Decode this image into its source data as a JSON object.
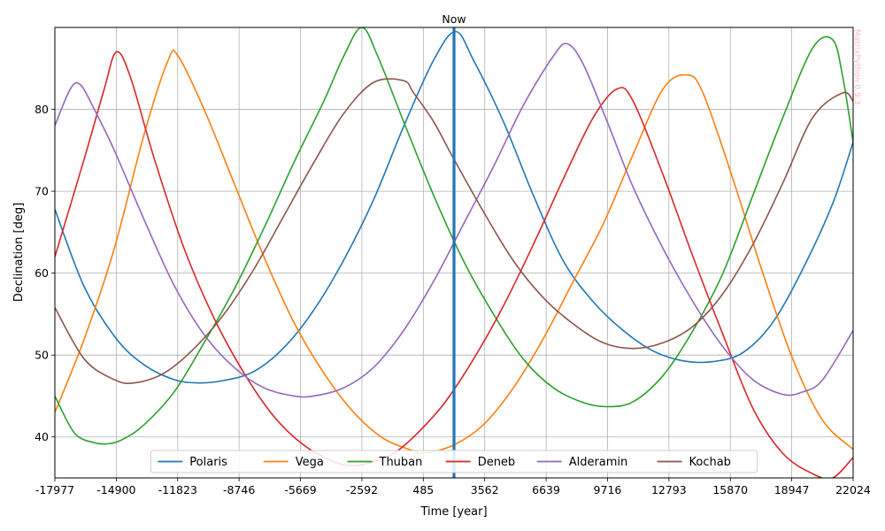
{
  "chart_data": {
    "type": "line",
    "title": "",
    "xlabel": "Time [year]",
    "ylabel": "Declination [deg]",
    "xlim": [
      -17977,
      22024
    ],
    "ylim": [
      35,
      90
    ],
    "xticks": [
      -17977,
      -14900,
      -11823,
      -8746,
      -5669,
      -2592,
      485,
      3562,
      6639,
      9716,
      12793,
      15870,
      18947,
      22024
    ],
    "yticks": [
      40,
      50,
      60,
      70,
      80
    ],
    "grid": true,
    "legend_position": "bottom-center",
    "marker": {
      "label": "Now",
      "x": 2024,
      "color": "#1f77b4"
    },
    "watermark": "MatrixPython 0.9.3",
    "series": [
      {
        "name": "Polaris",
        "color": "#1f77b4",
        "x": [
          -17977,
          -16500,
          -14900,
          -13500,
          -12000,
          -10800,
          -9500,
          -8000,
          -6500,
          -5000,
          -3500,
          -2000,
          -500,
          1000,
          2100,
          3000,
          4500,
          6000,
          7500,
          9000,
          10500,
          12000,
          13500,
          15000,
          16500,
          18000,
          19500,
          21000,
          22024
        ],
        "y": [
          67.8,
          58.3,
          52.0,
          48.8,
          47.0,
          46.6,
          46.9,
          48.0,
          50.9,
          55.5,
          61.6,
          69.0,
          77.9,
          86.0,
          89.5,
          86.0,
          78.5,
          69.5,
          61.5,
          56.5,
          53.0,
          50.5,
          49.3,
          49.2,
          50.3,
          54.0,
          60.5,
          68.5,
          76.0
        ]
      },
      {
        "name": "Vega",
        "color": "#ff7f0e",
        "x": [
          -17977,
          -16500,
          -15000,
          -13500,
          -12300,
          -11800,
          -10500,
          -9000,
          -7500,
          -6000,
          -4500,
          -3000,
          -1500,
          0,
          500,
          2000,
          3500,
          5000,
          6500,
          8000,
          9500,
          11000,
          12500,
          13700,
          14500,
          16000,
          17500,
          19000,
          20500,
          22024
        ],
        "y": [
          43.0,
          52.0,
          63.0,
          77.0,
          86.0,
          86.5,
          80.0,
          71.0,
          62.0,
          54.0,
          47.8,
          43.0,
          39.8,
          38.3,
          38.0,
          39.0,
          41.5,
          46.0,
          52.0,
          59.0,
          66.0,
          74.5,
          82.5,
          84.2,
          82.0,
          71.5,
          60.0,
          49.5,
          42.0,
          38.5
        ]
      },
      {
        "name": "Thuban",
        "color": "#2ca02c",
        "x": [
          -17977,
          -17000,
          -16000,
          -15200,
          -14500,
          -13500,
          -12000,
          -10500,
          -9000,
          -7500,
          -6000,
          -4500,
          -3500,
          -2600,
          -1800,
          -500,
          1000,
          2500,
          4000,
          5500,
          7000,
          8500,
          9700,
          11000,
          12500,
          14000,
          15500,
          17000,
          18500,
          20000,
          21000,
          21500,
          22024
        ],
        "y": [
          45.0,
          40.5,
          39.3,
          39.2,
          39.8,
          41.5,
          45.5,
          51.5,
          58.0,
          65.5,
          73.5,
          81.0,
          86.5,
          90.0,
          86.5,
          78.5,
          69.5,
          61.5,
          55.0,
          49.5,
          46.0,
          44.2,
          43.7,
          44.3,
          47.5,
          53.0,
          60.0,
          69.5,
          79.0,
          87.5,
          88.5,
          84.0,
          76.0
        ]
      },
      {
        "name": "Deneb",
        "color": "#d62728",
        "x": [
          -17977,
          -16500,
          -15500,
          -14900,
          -14200,
          -13000,
          -11500,
          -10000,
          -8500,
          -7000,
          -5500,
          -4000,
          -3000,
          -2000,
          -1000,
          0,
          1500,
          3000,
          4500,
          6000,
          7500,
          9000,
          10200,
          11000,
          12500,
          14000,
          15500,
          17000,
          18500,
          20000,
          21000,
          22024
        ],
        "y": [
          62.0,
          74.0,
          82.5,
          87.0,
          84.0,
          74.0,
          63.0,
          54.5,
          47.8,
          42.5,
          39.0,
          37.0,
          36.5,
          37.0,
          38.0,
          40.0,
          44.0,
          49.5,
          56.0,
          63.5,
          71.5,
          79.0,
          82.5,
          81.0,
          72.0,
          62.0,
          52.5,
          43.5,
          38.0,
          35.5,
          35.0,
          37.5
        ]
      },
      {
        "name": "Alderamin",
        "color": "#9467bd",
        "x": [
          -17977,
          -17200,
          -16700,
          -16000,
          -15000,
          -13500,
          -12000,
          -10500,
          -9000,
          -7500,
          -6000,
          -5000,
          -3500,
          -2000,
          -500,
          1000,
          2500,
          4000,
          5500,
          7000,
          7700,
          8500,
          9700,
          11000,
          12500,
          14000,
          15500,
          17000,
          18500,
          19500,
          20500,
          22024
        ],
        "y": [
          78.0,
          82.5,
          83.0,
          80.0,
          75.0,
          66.5,
          58.5,
          52.5,
          48.5,
          46.0,
          45.0,
          45.0,
          46.0,
          48.5,
          53.0,
          59.0,
          66.0,
          73.0,
          80.5,
          86.5,
          88.0,
          85.5,
          78.5,
          70.5,
          63.0,
          56.5,
          51.0,
          47.0,
          45.2,
          45.5,
          47.0,
          53.0
        ]
      },
      {
        "name": "Kochab",
        "color": "#8c564b",
        "x": [
          -17977,
          -16500,
          -15000,
          -14000,
          -12500,
          -11000,
          -9500,
          -8000,
          -6500,
          -5000,
          -3500,
          -2000,
          -500,
          0,
          1000,
          2000,
          3500,
          5000,
          6500,
          8000,
          9500,
          11000,
          12500,
          14000,
          15500,
          17000,
          18500,
          20000,
          21500,
          22024
        ],
        "y": [
          55.8,
          49.5,
          47.0,
          46.6,
          47.8,
          50.8,
          55.0,
          60.5,
          67.0,
          73.5,
          79.5,
          83.3,
          83.5,
          82.0,
          78.5,
          74.0,
          67.5,
          61.5,
          57.0,
          53.8,
          51.5,
          50.8,
          51.5,
          53.5,
          57.5,
          63.5,
          71.0,
          79.0,
          82.0,
          81.0
        ]
      }
    ]
  }
}
